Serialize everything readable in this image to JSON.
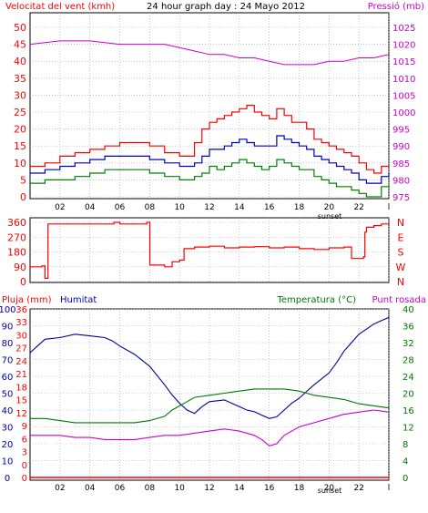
{
  "header": {
    "wind_title": "Velocitat del vent (kmh)",
    "graph_title": "24 hour graph day : 24 Mayo 2012",
    "pressure_title": "Pressió (mb)"
  },
  "bottom_header": {
    "rain_label": "Pluja (mm)",
    "humidity_label": "Humitat",
    "temperature_label": "Temperatura (°C)",
    "dewpoint_label": "Punt rosada"
  },
  "sunset_label": "sunset",
  "colors": {
    "frame": "#000000",
    "wind_gust": "#ff0000",
    "wind_avg": "#0000c0",
    "wind_low": "#008000",
    "pressure": "#cc00cc",
    "direction": "#ff0000",
    "humidity": "#000099",
    "temperature": "#007700",
    "dewpoint": "#cc00cc",
    "rain": "#ff0000"
  },
  "chart_data": [
    {
      "type": "line",
      "title": "Velocitat del vent (kmh)",
      "xlim": [
        0,
        24
      ],
      "x_ticks": [
        "02",
        "04",
        "06",
        "08",
        "10",
        "12",
        "14",
        "16",
        "18",
        "20",
        "22",
        "l"
      ],
      "ylim": [
        0,
        50
      ],
      "y_ticks": [
        "0",
        "5",
        "10",
        "15",
        "20",
        "25",
        "30",
        "35",
        "40",
        "45",
        "50"
      ],
      "y2lim": [
        975,
        1025
      ],
      "y2_ticks": [
        "975",
        "980",
        "985",
        "990",
        "995",
        "1000",
        "1005",
        "1010",
        "1015",
        "1020",
        "1025"
      ],
      "series": [
        {
          "name": "gust",
          "x": [
            0,
            1,
            2,
            3,
            4,
            5,
            6,
            7,
            8,
            9,
            10,
            11,
            11.5,
            12,
            12.5,
            13,
            13.5,
            14,
            14.5,
            15,
            15.5,
            16,
            16.5,
            17,
            17.5,
            18,
            18.5,
            19,
            19.5,
            20,
            20.5,
            21,
            21.5,
            22,
            22.5,
            23,
            23.5,
            24
          ],
          "values": [
            9,
            10,
            12,
            13,
            14,
            15,
            16,
            16,
            15,
            13,
            12,
            16,
            20,
            22,
            23,
            24,
            25,
            26,
            27,
            25,
            24,
            23,
            26,
            24,
            22,
            22,
            20,
            17,
            16,
            15,
            14,
            13,
            12,
            10,
            8,
            7,
            9,
            9
          ]
        },
        {
          "name": "average",
          "x": [
            0,
            1,
            2,
            3,
            4,
            5,
            6,
            7,
            8,
            9,
            10,
            11,
            11.5,
            12,
            12.5,
            13,
            13.5,
            14,
            14.5,
            15,
            15.5,
            16,
            16.5,
            17,
            17.5,
            18,
            18.5,
            19,
            19.5,
            20,
            20.5,
            21,
            21.5,
            22,
            22.5,
            23,
            23.5,
            24
          ],
          "values": [
            7,
            8,
            9,
            10,
            11,
            12,
            12,
            12,
            11,
            10,
            9,
            10,
            12,
            14,
            14,
            15,
            16,
            17,
            16,
            15,
            15,
            15,
            18,
            17,
            16,
            15,
            14,
            12,
            11,
            10,
            9,
            8,
            7,
            5,
            4,
            4,
            6,
            7
          ]
        },
        {
          "name": "minimum",
          "x": [
            0,
            1,
            2,
            3,
            4,
            5,
            6,
            7,
            8,
            9,
            10,
            11,
            11.5,
            12,
            12.5,
            13,
            13.5,
            14,
            14.5,
            15,
            15.5,
            16,
            16.5,
            17,
            17.5,
            18,
            18.5,
            19,
            19.5,
            20,
            20.5,
            21,
            21.5,
            22,
            22.5,
            23,
            23.5,
            24
          ],
          "values": [
            4,
            5,
            5,
            6,
            7,
            8,
            8,
            8,
            7,
            6,
            5,
            6,
            7,
            9,
            8,
            9,
            10,
            11,
            10,
            9,
            8,
            9,
            11,
            10,
            9,
            8,
            8,
            6,
            5,
            4,
            3,
            3,
            2,
            1,
            0,
            0,
            3,
            4
          ]
        },
        {
          "name": "pressure",
          "axis": "right",
          "x": [
            0,
            2,
            4,
            6,
            8,
            9,
            10,
            11,
            12,
            13,
            14,
            15,
            16,
            17,
            18,
            19,
            20,
            21,
            22,
            23,
            24
          ],
          "values": [
            1020,
            1021,
            1021,
            1020,
            1020,
            1020,
            1019,
            1018,
            1017,
            1017,
            1016,
            1016,
            1015,
            1014,
            1014,
            1014,
            1015,
            1015,
            1016,
            1016,
            1017
          ]
        }
      ]
    },
    {
      "type": "line",
      "title": "",
      "xlim": [
        0,
        24
      ],
      "ylim": [
        0,
        360
      ],
      "y_ticks": [
        "0",
        "90",
        "180",
        "270",
        "360"
      ],
      "y2_ticks": [
        "N",
        "W",
        "S",
        "E",
        "N"
      ],
      "series": [
        {
          "name": "direction",
          "x": [
            0,
            0.8,
            1.0,
            1.1,
            1.2,
            5.6,
            5.61,
            6.0,
            6.01,
            7.8,
            7.81,
            8.0,
            8.01,
            9.0,
            9.5,
            10.0,
            10.3,
            11,
            12,
            13,
            14,
            15,
            16,
            17,
            18,
            19,
            20,
            21,
            21.5,
            22,
            22.3,
            22.4,
            22.5,
            23,
            23.5,
            24
          ],
          "values": [
            90,
            95,
            20,
            20,
            350,
            350,
            360,
            360,
            350,
            350,
            360,
            360,
            100,
            90,
            120,
            130,
            200,
            210,
            215,
            205,
            210,
            212,
            205,
            210,
            200,
            195,
            205,
            210,
            140,
            140,
            150,
            300,
            330,
            340,
            350,
            355
          ]
        }
      ]
    },
    {
      "type": "line",
      "title": "",
      "xlim": [
        0,
        24
      ],
      "ylim_humidity": [
        0,
        100
      ],
      "y_ticks_humidity": [
        "0",
        "10",
        "20",
        "30",
        "40",
        "50",
        "60",
        "70",
        "80",
        "90",
        "100"
      ],
      "y_ticks_rain": [
        "0",
        "0",
        "3",
        "6",
        "9",
        "12",
        "15",
        "18",
        "21",
        "24",
        "27",
        "30",
        "33",
        "36"
      ],
      "y2lim": [
        0,
        40
      ],
      "y2_ticks": [
        "0",
        "4",
        "8",
        "12",
        "16",
        "20",
        "24",
        "28",
        "32",
        "36",
        "40"
      ],
      "series": [
        {
          "name": "Humitat",
          "x": [
            0,
            0.5,
            1,
            2,
            3,
            4,
            5,
            5.5,
            6,
            7,
            8,
            9,
            9.5,
            10,
            10.5,
            11,
            11.5,
            12,
            13,
            13.5,
            14,
            14.5,
            15,
            15.5,
            16,
            16.5,
            17,
            17.5,
            18,
            18.5,
            19,
            20,
            20.5,
            21,
            21.5,
            22,
            22.5,
            23,
            23.5,
            24
          ],
          "values": [
            74,
            78,
            82,
            83,
            85,
            84,
            83,
            81,
            78,
            73,
            66,
            55,
            49,
            44,
            40,
            38,
            42,
            45,
            46,
            44,
            42,
            40,
            39,
            37,
            35,
            36,
            40,
            44,
            47,
            51,
            55,
            62,
            68,
            75,
            80,
            85,
            88,
            91,
            93,
            95
          ]
        },
        {
          "name": "Temperatura (°C)",
          "axis": "right",
          "x": [
            0,
            1,
            2,
            3,
            4,
            5,
            6,
            7,
            8,
            9,
            9.5,
            10,
            10.5,
            11,
            12,
            13,
            14,
            15,
            16,
            17,
            18,
            18.5,
            19,
            20,
            21,
            22,
            23,
            24
          ],
          "values": [
            14,
            14,
            13.5,
            13,
            13,
            13,
            13,
            13,
            13.5,
            14.5,
            16,
            17,
            18,
            19,
            19.5,
            20,
            20.5,
            21,
            21,
            21,
            20.5,
            20,
            19.5,
            19,
            18.5,
            17.5,
            17,
            16.5
          ]
        },
        {
          "name": "Punt rosada",
          "axis": "right",
          "x": [
            0,
            1,
            2,
            3,
            4,
            5,
            6,
            7,
            8,
            9,
            10,
            11,
            12,
            13,
            14,
            15,
            15.5,
            16,
            16.5,
            17,
            18,
            19,
            20,
            21,
            22,
            23,
            24
          ],
          "values": [
            10,
            10,
            10,
            9.5,
            9.5,
            9,
            9,
            9,
            9.5,
            10,
            10,
            10.5,
            11,
            11.5,
            11,
            10,
            9,
            7.5,
            8,
            10,
            12,
            13,
            14,
            15,
            15.5,
            16,
            15.5
          ]
        },
        {
          "name": "Pluja (mm)",
          "x": [
            0,
            24
          ],
          "values": [
            0,
            0
          ]
        }
      ]
    }
  ]
}
